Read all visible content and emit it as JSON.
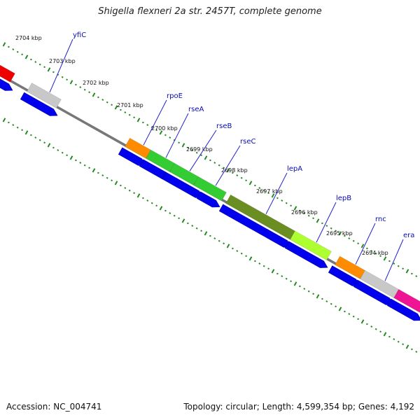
{
  "header": {
    "title": "Shigella flexneri 2a str. 2457T, complete genome"
  },
  "footer": {
    "accession": "Accession: NC_004741",
    "summary": "Topology: circular; Length: 4,599,354 bp; Genes: 4,192"
  },
  "genes": [
    {
      "name": "yfiC",
      "color": "#c8c8c8"
    },
    {
      "name": "rpoE",
      "color": "#ff8c00"
    },
    {
      "name": "rseA",
      "color": "#33cc33"
    },
    {
      "name": "rseB",
      "color": "#33cc33"
    },
    {
      "name": "rseC",
      "color": "#33cc33"
    },
    {
      "name": "lepA",
      "color": "#6b8e23"
    },
    {
      "name": "lepB",
      "color": "#adff2f"
    },
    {
      "name": "rnc",
      "color": "#ff8c00"
    },
    {
      "name": "era",
      "color": "#c8c8c8"
    }
  ],
  "kbp_ticks": [
    "2704 kbp",
    "2703 kbp",
    "2702 kbp",
    "2701 kbp",
    "2700 kbp",
    "2699 kbp",
    "2698 kbp",
    "2697 kbp",
    "2696 kbp",
    "2695 kbp",
    "2694 kbp"
  ],
  "colors": {
    "cds": "#0000ee",
    "backbone": "#777777",
    "ticks": "#228b22",
    "offscreen_left": "#ee0000",
    "offscreen_right": "#ee1493",
    "label_line": "#2222cc"
  }
}
